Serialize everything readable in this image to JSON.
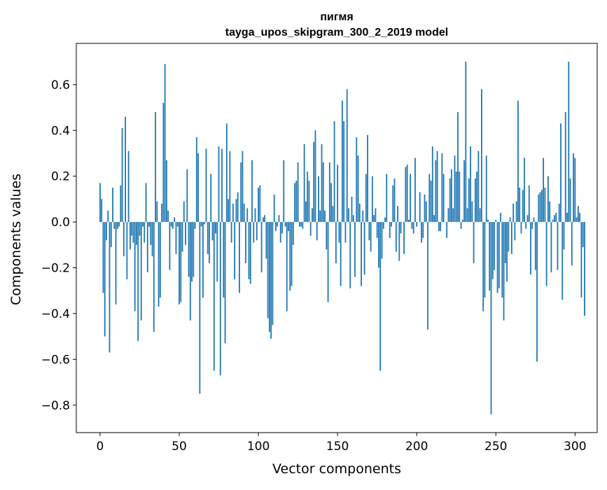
{
  "chart_data": {
    "type": "bar",
    "title_line1": "пигмя",
    "title_line2": "tayga_upos_skipgram_300_2_2019 model",
    "xlabel": "Vector components",
    "ylabel": "Components values",
    "xlim": [
      -15,
      314
    ],
    "ylim": [
      -0.92,
      0.78
    ],
    "xticks": [
      0,
      50,
      100,
      150,
      200,
      250,
      300
    ],
    "xtick_labels": [
      "0",
      "50",
      "100",
      "150",
      "200",
      "250",
      "300"
    ],
    "yticks": [
      -0.8,
      -0.6,
      -0.4,
      -0.2,
      0.0,
      0.2,
      0.4,
      0.6
    ],
    "ytick_labels": [
      "−0.8",
      "−0.6",
      "−0.4",
      "−0.2",
      "0.0",
      "0.2",
      "0.4",
      "0.6"
    ],
    "color": "#1f77b4",
    "values": [
      0.17,
      0.1,
      -0.31,
      -0.5,
      -0.08,
      0.05,
      -0.57,
      -0.11,
      0.15,
      -0.03,
      -0.36,
      -0.03,
      -0.02,
      0.16,
      0.41,
      -0.15,
      0.46,
      -0.25,
      0.31,
      -0.12,
      -0.06,
      -0.09,
      -0.39,
      -0.1,
      -0.52,
      -0.06,
      -0.43,
      -0.02,
      -0.09,
      0.17,
      -0.22,
      -0.02,
      -0.1,
      -0.15,
      -0.48,
      0.48,
      0.09,
      -0.37,
      -0.33,
      0.08,
      0.52,
      0.69,
      0.27,
      0.05,
      -0.21,
      -0.02,
      -0.03,
      0.02,
      -0.14,
      -0.02,
      -0.36,
      -0.35,
      -0.13,
      0.09,
      -0.1,
      0.23,
      -0.24,
      -0.43,
      -0.26,
      -0.24,
      -0.03,
      0.37,
      0.3,
      -0.75,
      -0.02,
      -0.33,
      -0.01,
      0.32,
      -0.14,
      -0.18,
      0.21,
      -0.08,
      -0.65,
      -0.05,
      -0.26,
      0.33,
      -0.67,
      0.32,
      -0.33,
      -0.53,
      0.43,
      0.1,
      0.31,
      -0.09,
      0.08,
      -0.25,
      0.1,
      0.13,
      -0.31,
      0.26,
      0.31,
      0.08,
      -0.18,
      0.06,
      -0.25,
      -0.27,
      0.27,
      -0.09,
      0.06,
      -0.08,
      0.15,
      0.16,
      -0.22,
      0.02,
      0.03,
      -0.16,
      -0.42,
      -0.48,
      -0.51,
      -0.45,
      0.12,
      -0.04,
      -0.02,
      0.03,
      -0.09,
      -0.05,
      0.27,
      -0.02,
      -0.39,
      -0.04,
      -0.3,
      -0.28,
      -0.1,
      0.17,
      0.18,
      0.26,
      -0.02,
      -0.02,
      -0.03,
      0.34,
      0.09,
      0.22,
      0.18,
      -0.06,
      0.06,
      0.35,
      0.4,
      -0.08,
      0.2,
      0.05,
      0.34,
      0.26,
      0.05,
      -0.12,
      -0.35,
      0.26,
      0.17,
      0.07,
      0.44,
      -0.18,
      0.25,
      -0.09,
      -0.28,
      0.53,
      0.44,
      -0.09,
      0.58,
      0.06,
      -0.29,
      0.11,
      0.03,
      -0.24,
      0.37,
      0.29,
      0.08,
      -0.28,
      0.05,
      -0.23,
      0.21,
      0.38,
      -0.08,
      -0.13,
      0.2,
      0.03,
      0.06,
      -0.07,
      -0.2,
      -0.65,
      -0.16,
      -0.03,
      0.02,
      0.21,
      0.0,
      -0.07,
      -0.02,
      0.16,
      0.19,
      -0.13,
      0.07,
      -0.17,
      -0.05,
      0.0,
      -0.14,
      0.24,
      0.25,
      0.01,
      0.21,
      -0.03,
      -0.05,
      0.28,
      -0.02,
      0.0,
      0.13,
      -0.09,
      -0.07,
      0.12,
      0.09,
      -0.47,
      0.21,
      0.18,
      0.33,
      0.03,
      0.27,
      0.31,
      -0.04,
      -0.04,
      0.3,
      0.21,
      0.0,
      -0.07,
      0.06,
      0.19,
      0.23,
      0.06,
      0.29,
      0.22,
      0.48,
      0.22,
      -0.03,
      0.01,
      0.27,
      0.7,
      0.06,
      0.19,
      0.33,
      0.09,
      -0.18,
      0.19,
      0.22,
      0.31,
      0.06,
      0.58,
      -0.39,
      -0.33,
      0.29,
      0.01,
      -0.3,
      -0.84,
      -0.25,
      -0.21,
      0.01,
      -0.31,
      -0.29,
      0.04,
      -0.33,
      -0.43,
      -0.18,
      -0.26,
      -0.13,
      0.02,
      -0.14,
      0.08,
      -0.08,
      0.09,
      0.53,
      0.15,
      -0.05,
      0.14,
      0.28,
      -0.03,
      0.03,
      0.16,
      -0.23,
      -0.03,
      0.02,
      -0.21,
      -0.61,
      0.12,
      0.13,
      0.14,
      0.28,
      0.15,
      -0.28,
      0.2,
      0.09,
      -0.22,
      0.01,
      0.03,
      0.04,
      -0.21,
      0.08,
      0.43,
      -0.34,
      -0.12,
      0.48,
      0.04,
      0.7,
      0.19,
      -0.19,
      0.3,
      0.28,
      0.02,
      0.07,
      0.04,
      -0.33,
      -0.11,
      -0.41
    ]
  }
}
